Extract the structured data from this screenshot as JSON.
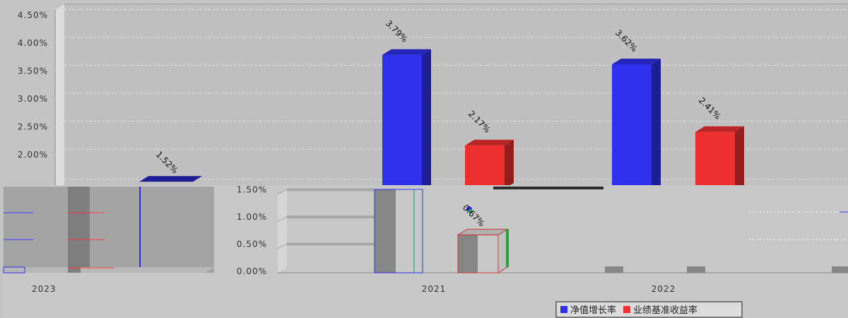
{
  "chart_data": {
    "type": "bar",
    "categories": [
      "2021",
      "2022"
    ],
    "series": [
      {
        "name": "净值增长率",
        "color": "#2f2fee",
        "values": [
          3.79,
          3.62
        ]
      },
      {
        "name": "业绩基准收益率",
        "color": "#ee2f2f",
        "values": [
          2.17,
          2.41
        ]
      }
    ],
    "y_tick_labels": [
      "4.50%",
      "4.00%",
      "3.50%",
      "3.00%",
      "2.50%",
      "2.00%"
    ],
    "ylim": [
      1.7,
      4.7
    ],
    "grid": true,
    "legend_position": "bottom-right",
    "inset": {
      "y_tick_labels": [
        "1.50%",
        "1.00%",
        "0.50%",
        "0.00%"
      ],
      "ylim": [
        0,
        1.5
      ],
      "data_label": "0.67%",
      "value": 0.67
    },
    "fragment": {
      "category": "2023",
      "data_label": "1.52%",
      "value": 1.52
    }
  }
}
